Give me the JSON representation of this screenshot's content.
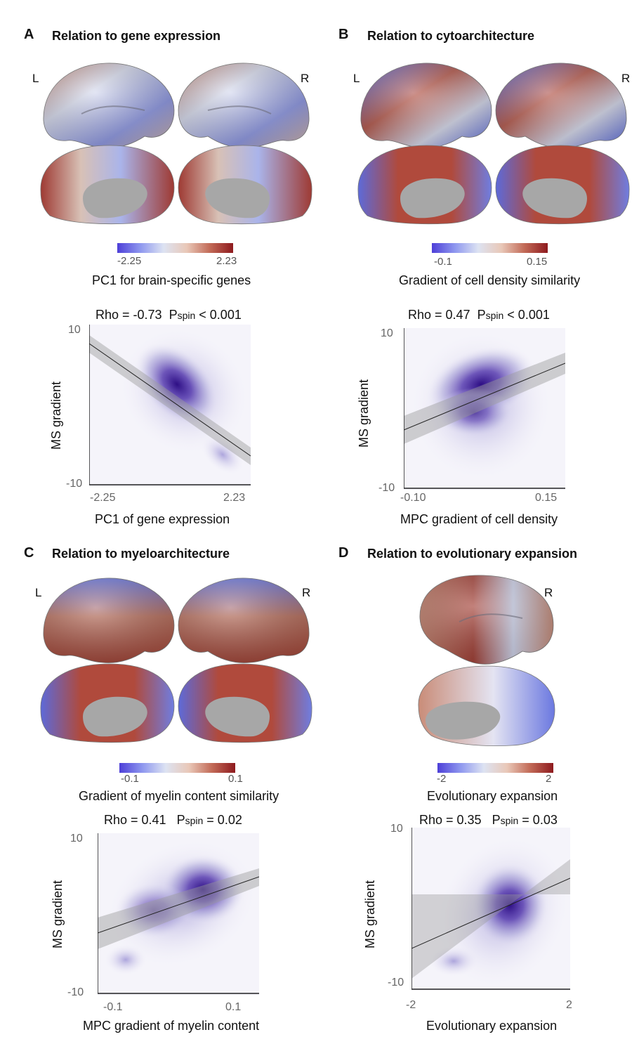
{
  "panels": {
    "A": {
      "letter": "A",
      "title": "Relation to gene expression",
      "hemi_left": "L",
      "hemi_right": "R",
      "colorbar": {
        "min": "-2.25",
        "max": "2.23",
        "title": "PC1 for brain-specific genes"
      },
      "stat": {
        "rho": "Rho = -0.73",
        "p_main": "P",
        "p_sub": "spin",
        "p_rest": " < 0.001"
      },
      "ylabel": "MS gradient",
      "xlabel": "PC1 of gene expression",
      "yticks": [
        "10",
        "-10"
      ],
      "xticks": [
        "-2.25",
        "2.23"
      ]
    },
    "B": {
      "letter": "B",
      "title": "Relation to cytoarchitecture",
      "hemi_left": "L",
      "hemi_right": "R",
      "colorbar": {
        "min": "-0.1",
        "max": "0.15",
        "title": "Gradient of cell density similarity"
      },
      "stat": {
        "rho": "Rho = 0.47",
        "p_main": "P",
        "p_sub": "spin",
        "p_rest": " < 0.001"
      },
      "ylabel": "MS gradient",
      "xlabel": "MPC gradient of cell density",
      "yticks": [
        "10",
        "-10"
      ],
      "xticks": [
        "-0.10",
        "0.15"
      ]
    },
    "C": {
      "letter": "C",
      "title": "Relation to myeloarchitecture",
      "hemi_left": "L",
      "hemi_right": "R",
      "colorbar": {
        "min": "-0.1",
        "max": "0.1",
        "title": "Gradient of myelin content similarity"
      },
      "stat": {
        "rho": "Rho = 0.41",
        "p_main": "P",
        "p_sub": "spin",
        "p_rest": " = 0.02"
      },
      "ylabel": "MS gradient",
      "xlabel": "MPC gradient of myelin content",
      "yticks": [
        "10",
        "-10"
      ],
      "xticks": [
        "-0.1",
        "0.1"
      ]
    },
    "D": {
      "letter": "D",
      "title": "Relation to evolutionary expansion",
      "hemi_right": "R",
      "colorbar": {
        "min": "-2",
        "max": "2",
        "title": "Evolutionary expansion"
      },
      "stat": {
        "rho": "Rho = 0.35",
        "p_main": "P",
        "p_sub": "spin",
        "p_rest": " = 0.03"
      },
      "ylabel": "MS gradient",
      "xlabel": "Evolutionary expansion",
      "yticks": [
        "10",
        "-10"
      ],
      "xticks": [
        "-2",
        "2"
      ]
    }
  },
  "colors": {
    "blue": "#4d3fd8",
    "white": "#dde3f2",
    "red": "#8e1a1e",
    "density": "#3d1d8f",
    "medial_wall": "#a7a7a7"
  },
  "chart_data": [
    {
      "type": "scatter",
      "panel": "A",
      "style": "density",
      "xlabel": "PC1 of gene expression",
      "ylabel": "MS gradient",
      "xlim": [
        -2.25,
        2.23
      ],
      "ylim": [
        -10,
        10
      ],
      "fit_slope": "negative"
    },
    {
      "type": "scatter",
      "panel": "B",
      "style": "density",
      "xlabel": "MPC gradient of cell density",
      "ylabel": "MS gradient",
      "xlim": [
        -0.1,
        0.15
      ],
      "ylim": [
        -10,
        10
      ],
      "fit_slope": "positive"
    },
    {
      "type": "scatter",
      "panel": "C",
      "style": "density",
      "xlabel": "MPC gradient of myelin content",
      "ylabel": "MS gradient",
      "xlim": [
        -0.1,
        0.1
      ],
      "ylim": [
        -10,
        10
      ],
      "fit_slope": "positive"
    },
    {
      "type": "scatter",
      "panel": "D",
      "style": "density",
      "xlabel": "Evolutionary expansion",
      "ylabel": "MS gradient",
      "xlim": [
        -2,
        2
      ],
      "ylim": [
        -10,
        10
      ],
      "fit_slope": "positive"
    }
  ]
}
